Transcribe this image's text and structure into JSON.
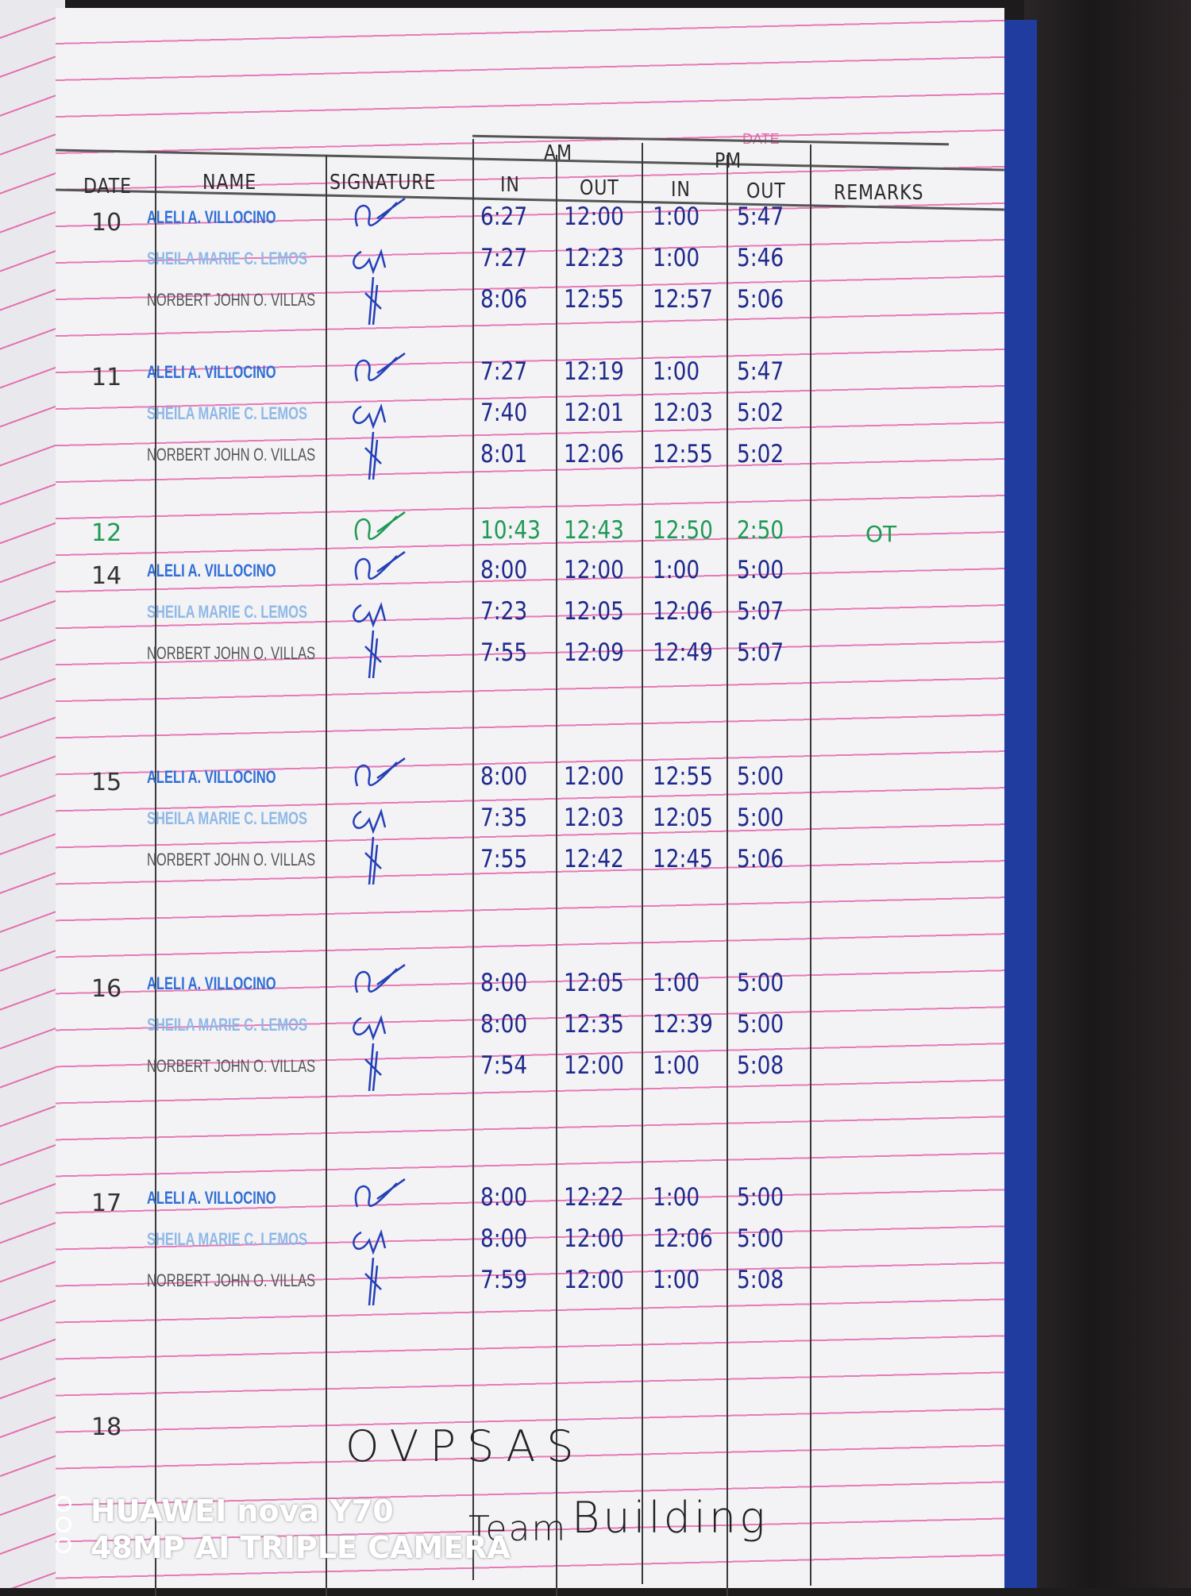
{
  "header": {
    "date_label": "DATE",
    "columns": {
      "date": "DATE",
      "name": "NAME",
      "signature": "SIGNATURE",
      "am": "AM",
      "pm": "PM",
      "in": "IN",
      "out": "OUT",
      "remarks": "REMARKS"
    }
  },
  "colors": {
    "ruling": "#e77ab8",
    "ink_blue": "#1f2a8c",
    "ink_green": "#1f9a55",
    "cover": "#1f3c9e"
  },
  "days": [
    {
      "date": "10",
      "entries": [
        {
          "name": "ALELI A. VILLOCINO",
          "am_in": "6:27",
          "am_out": "12:00",
          "pm_in": "1:00",
          "pm_out": "5:47"
        },
        {
          "name": "SHEILA MARIE C. LEMOS",
          "am_in": "7:27",
          "am_out": "12:23",
          "pm_in": "1:00",
          "pm_out": "5:46"
        },
        {
          "name": "NORBERT JOHN O. VILLAS",
          "am_in": "8:06",
          "am_out": "12:55",
          "pm_in": "12:57",
          "pm_out": "5:06"
        }
      ]
    },
    {
      "date": "11",
      "entries": [
        {
          "name": "ALELI A. VILLOCINO",
          "am_in": "7:27",
          "am_out": "12:19",
          "pm_in": "1:00",
          "pm_out": "5:47"
        },
        {
          "name": "SHEILA MARIE C. LEMOS",
          "am_in": "7:40",
          "am_out": "12:01",
          "pm_in": "12:03",
          "pm_out": "5:02"
        },
        {
          "name": "NORBERT JOHN O. VILLAS",
          "am_in": "8:01",
          "am_out": "12:06",
          "pm_in": "12:55",
          "pm_out": "5:02"
        }
      ]
    },
    {
      "date": "12",
      "green": true,
      "remarks": "OT",
      "entries": [
        {
          "name": "",
          "am_in": "10:43",
          "am_out": "12:43",
          "pm_in": "12:50",
          "pm_out": "2:50"
        }
      ]
    },
    {
      "date": "14",
      "entries": [
        {
          "name": "ALELI A. VILLOCINO",
          "am_in": "8:00",
          "am_out": "12:00",
          "pm_in": "1:00",
          "pm_out": "5:00"
        },
        {
          "name": "SHEILA MARIE C. LEMOS",
          "am_in": "7:23",
          "am_out": "12:05",
          "pm_in": "12:06",
          "pm_out": "5:07"
        },
        {
          "name": "NORBERT JOHN O. VILLAS",
          "am_in": "7:55",
          "am_out": "12:09",
          "pm_in": "12:49",
          "pm_out": "5:07"
        }
      ]
    },
    {
      "date": "15",
      "entries": [
        {
          "name": "ALELI A. VILLOCINO",
          "am_in": "8:00",
          "am_out": "12:00",
          "pm_in": "12:55",
          "pm_out": "5:00"
        },
        {
          "name": "SHEILA MARIE C. LEMOS",
          "am_in": "7:35",
          "am_out": "12:03",
          "pm_in": "12:05",
          "pm_out": "5:00"
        },
        {
          "name": "NORBERT JOHN O. VILLAS",
          "am_in": "7:55",
          "am_out": "12:42",
          "pm_in": "12:45",
          "pm_out": "5:06"
        }
      ]
    },
    {
      "date": "16",
      "entries": [
        {
          "name": "ALELI A. VILLOCINO",
          "am_in": "8:00",
          "am_out": "12:05",
          "pm_in": "1:00",
          "pm_out": "5:00"
        },
        {
          "name": "SHEILA MARIE C. LEMOS",
          "am_in": "8:00",
          "am_out": "12:35",
          "pm_in": "12:39",
          "pm_out": "5:00"
        },
        {
          "name": "NORBERT JOHN O. VILLAS",
          "am_in": "7:54",
          "am_out": "12:00",
          "pm_in": "1:00",
          "pm_out": "5:08"
        }
      ]
    },
    {
      "date": "17",
      "entries": [
        {
          "name": "ALELI A. VILLOCINO",
          "am_in": "8:00",
          "am_out": "12:22",
          "pm_in": "1:00",
          "pm_out": "5:00"
        },
        {
          "name": "SHEILA MARIE C. LEMOS",
          "am_in": "8:00",
          "am_out": "12:00",
          "pm_in": "12:06",
          "pm_out": "5:00"
        },
        {
          "name": "NORBERT JOHN O. VILLAS",
          "am_in": "7:59",
          "am_out": "12:00",
          "pm_in": "1:00",
          "pm_out": "5:08"
        }
      ]
    }
  ],
  "day18": {
    "date": "18",
    "note_line1": "OVPSAS",
    "note_line2_a": "Team",
    "note_line2_b": "Building"
  },
  "watermark": {
    "line1": "HUAWEI nova Y70",
    "line2": "48MP AI TRIPLE CAMERA"
  }
}
